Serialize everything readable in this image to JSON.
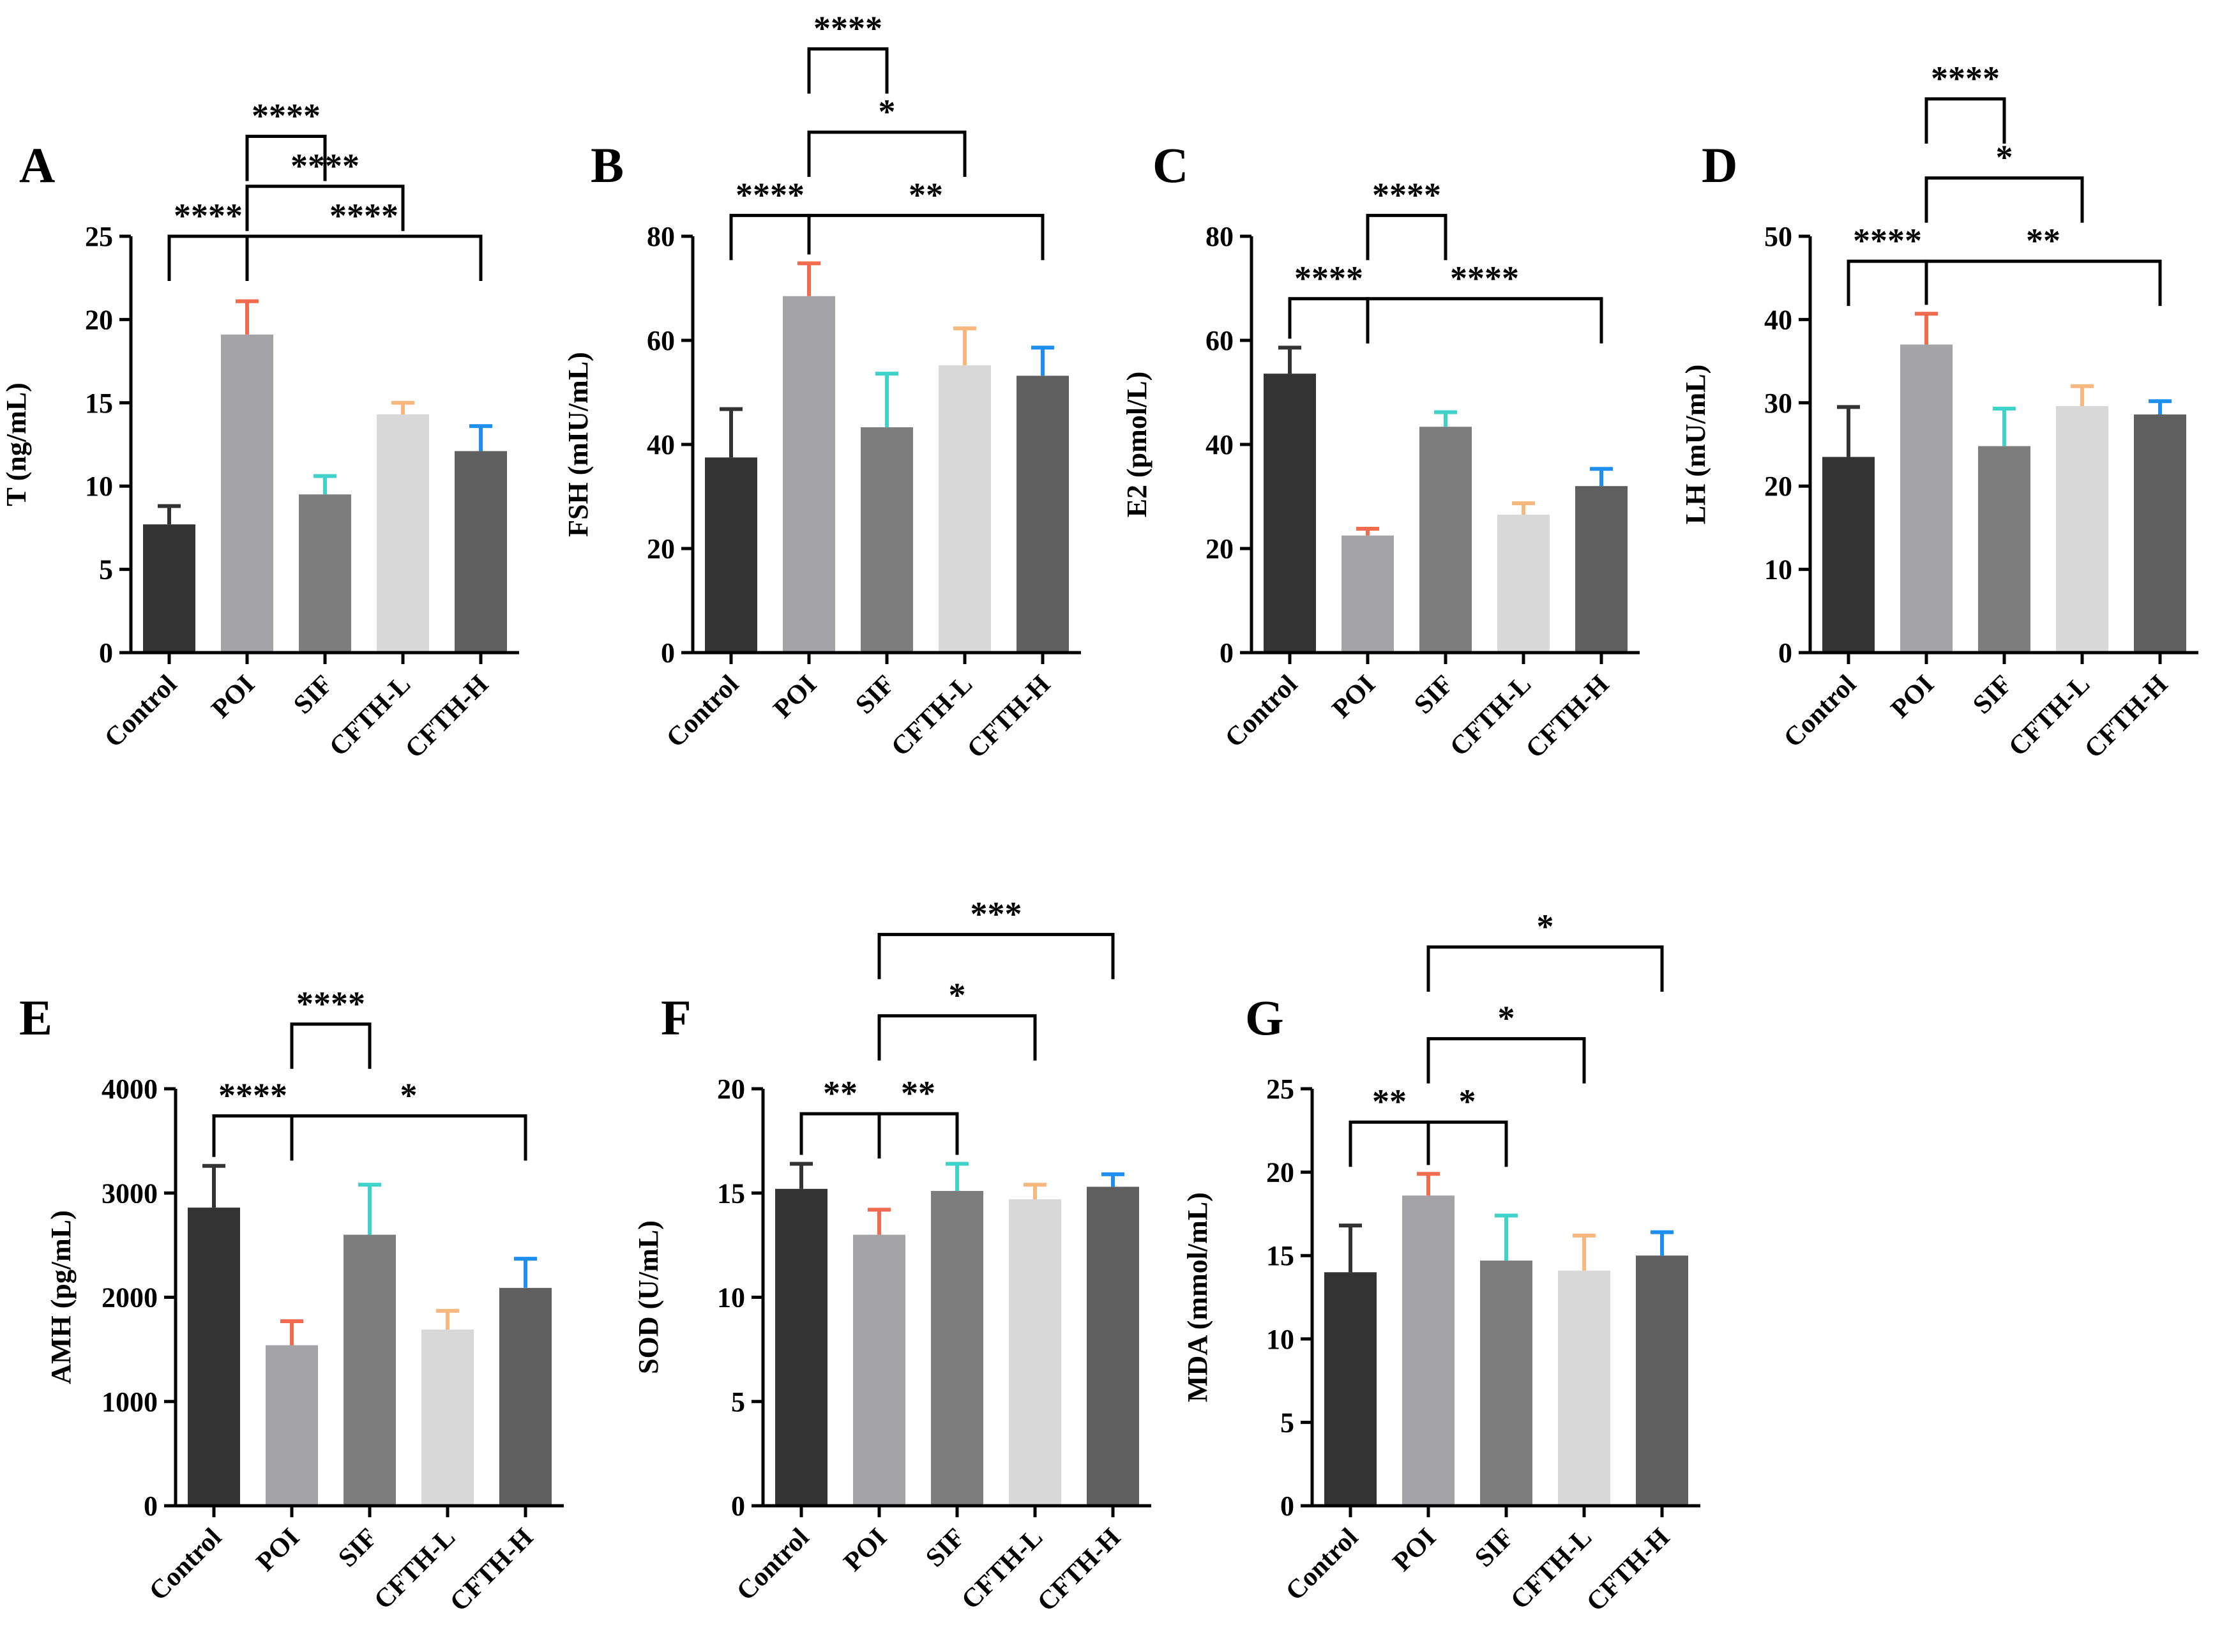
{
  "categories": [
    "Control",
    "POI",
    "SIF",
    "CFTH-L",
    "CFTH-H"
  ],
  "colors": {
    "bars": [
      "#333333",
      "#a4a4a8",
      "#7d7d7d",
      "#d8d8d8",
      "#5f5f5f"
    ],
    "errors": [
      "#333333",
      "#f26b4f",
      "#3fd2c8",
      "#f7b77d",
      "#1e8ff0"
    ]
  },
  "chart_data": [
    {
      "panel": "A",
      "type": "bar",
      "ylabel": "T (ng/mL)",
      "ylim": [
        0,
        25
      ],
      "yticks": [
        0,
        5,
        10,
        15,
        20,
        25
      ],
      "categories": [
        "Control",
        "POI",
        "SIF",
        "CFTH-L",
        "CFTH-H"
      ],
      "values": [
        7.7,
        19.1,
        9.5,
        14.3,
        12.1
      ],
      "errors": [
        1.1,
        2.0,
        1.1,
        0.7,
        1.5
      ],
      "comparisons": [
        {
          "from": 0,
          "to": 1,
          "label": "****",
          "level": 25.0
        },
        {
          "from": 1,
          "to": 4,
          "label": "****",
          "level": 25.0
        },
        {
          "from": 1,
          "to": 3,
          "label": "****",
          "level": 28.0
        },
        {
          "from": 1,
          "to": 2,
          "label": "****",
          "level": 31.0
        }
      ]
    },
    {
      "panel": "B",
      "type": "bar",
      "ylabel": "FSH (mIU/mL)",
      "ylim": [
        0,
        80
      ],
      "yticks": [
        0,
        20,
        40,
        60,
        80
      ],
      "categories": [
        "Control",
        "POI",
        "SIF",
        "CFTH-L",
        "CFTH-H"
      ],
      "values": [
        37.5,
        68.5,
        43.3,
        55.2,
        53.2
      ],
      "errors": [
        9.3,
        6.3,
        10.3,
        7.1,
        5.4
      ],
      "comparisons": [
        {
          "from": 0,
          "to": 1,
          "label": "****",
          "level": 84.0
        },
        {
          "from": 1,
          "to": 4,
          "label": "**",
          "level": 84.0
        },
        {
          "from": 1,
          "to": 3,
          "label": "*",
          "level": 100.0
        },
        {
          "from": 1,
          "to": 2,
          "label": "****",
          "level": 116.0
        }
      ]
    },
    {
      "panel": "C",
      "type": "bar",
      "ylabel": "E2 (pmol/L)",
      "ylim": [
        0,
        80
      ],
      "yticks": [
        0,
        20,
        40,
        60,
        80
      ],
      "categories": [
        "Control",
        "POI",
        "SIF",
        "CFTH-L",
        "CFTH-H"
      ],
      "values": [
        53.6,
        22.5,
        43.4,
        26.5,
        32.0
      ],
      "errors": [
        5.0,
        1.3,
        2.8,
        2.2,
        3.3
      ],
      "comparisons": [
        {
          "from": 0,
          "to": 1,
          "label": "****",
          "level": 68.0
        },
        {
          "from": 1,
          "to": 4,
          "label": "****",
          "level": 68.0
        },
        {
          "from": 1,
          "to": 2,
          "label": "****",
          "level": 84.0
        }
      ]
    },
    {
      "panel": "D",
      "type": "bar",
      "ylabel": "LH (mU/mL)",
      "ylim": [
        0,
        50
      ],
      "yticks": [
        0,
        10,
        20,
        30,
        40,
        50
      ],
      "categories": [
        "Control",
        "POI",
        "SIF",
        "CFTH-L",
        "CFTH-H"
      ],
      "values": [
        23.5,
        37.0,
        24.8,
        29.6,
        28.6
      ],
      "errors": [
        6.0,
        3.7,
        4.5,
        2.4,
        1.6
      ],
      "comparisons": [
        {
          "from": 0,
          "to": 1,
          "label": "****",
          "level": 47.0
        },
        {
          "from": 1,
          "to": 4,
          "label": "**",
          "level": 47.0
        },
        {
          "from": 1,
          "to": 3,
          "label": "*",
          "level": 57.0
        },
        {
          "from": 1,
          "to": 2,
          "label": "****",
          "level": 66.5
        }
      ]
    },
    {
      "panel": "E",
      "type": "bar",
      "ylabel": "AMH (pg/mL)",
      "ylim": [
        0,
        4000
      ],
      "yticks": [
        0,
        1000,
        2000,
        3000,
        4000
      ],
      "categories": [
        "Control",
        "POI",
        "SIF",
        "CFTH-L",
        "CFTH-H"
      ],
      "values": [
        2860,
        1540,
        2600,
        1690,
        2090
      ],
      "errors": [
        400,
        230,
        480,
        180,
        280
      ],
      "comparisons": [
        {
          "from": 0,
          "to": 1,
          "label": "****",
          "level": 3740
        },
        {
          "from": 1,
          "to": 4,
          "label": "*",
          "level": 3740
        },
        {
          "from": 1,
          "to": 2,
          "label": "****",
          "level": 4620
        }
      ]
    },
    {
      "panel": "F",
      "type": "bar",
      "ylabel": "SOD (U/mL)",
      "ylim": [
        0,
        20
      ],
      "yticks": [
        0,
        5,
        10,
        15,
        20
      ],
      "categories": [
        "Control",
        "POI",
        "SIF",
        "CFTH-L",
        "CFTH-H"
      ],
      "values": [
        15.2,
        13.0,
        15.1,
        14.7,
        15.3
      ],
      "errors": [
        1.2,
        1.2,
        1.3,
        0.7,
        0.6
      ],
      "comparisons": [
        {
          "from": 0,
          "to": 1,
          "label": "**",
          "level": 18.8
        },
        {
          "from": 1,
          "to": 2,
          "label": "**",
          "level": 18.8
        },
        {
          "from": 1,
          "to": 3,
          "label": "*",
          "level": 23.5
        },
        {
          "from": 1,
          "to": 4,
          "label": "***",
          "level": 27.4
        }
      ]
    },
    {
      "panel": "G",
      "type": "bar",
      "ylabel": "MDA (mmol/mL)",
      "ylim": [
        0,
        25
      ],
      "yticks": [
        0,
        5,
        10,
        15,
        20,
        25
      ],
      "categories": [
        "Control",
        "POI",
        "SIF",
        "CFTH-L",
        "CFTH-H"
      ],
      "values": [
        14.0,
        18.6,
        14.7,
        14.1,
        15.0
      ],
      "errors": [
        2.8,
        1.3,
        2.7,
        2.1,
        1.4
      ],
      "comparisons": [
        {
          "from": 0,
          "to": 1,
          "label": "**",
          "level": 23.0
        },
        {
          "from": 1,
          "to": 2,
          "label": "*",
          "level": 23.0
        },
        {
          "from": 1,
          "to": 3,
          "label": "*",
          "level": 28.0
        },
        {
          "from": 1,
          "to": 4,
          "label": "*",
          "level": 33.5
        }
      ]
    }
  ]
}
